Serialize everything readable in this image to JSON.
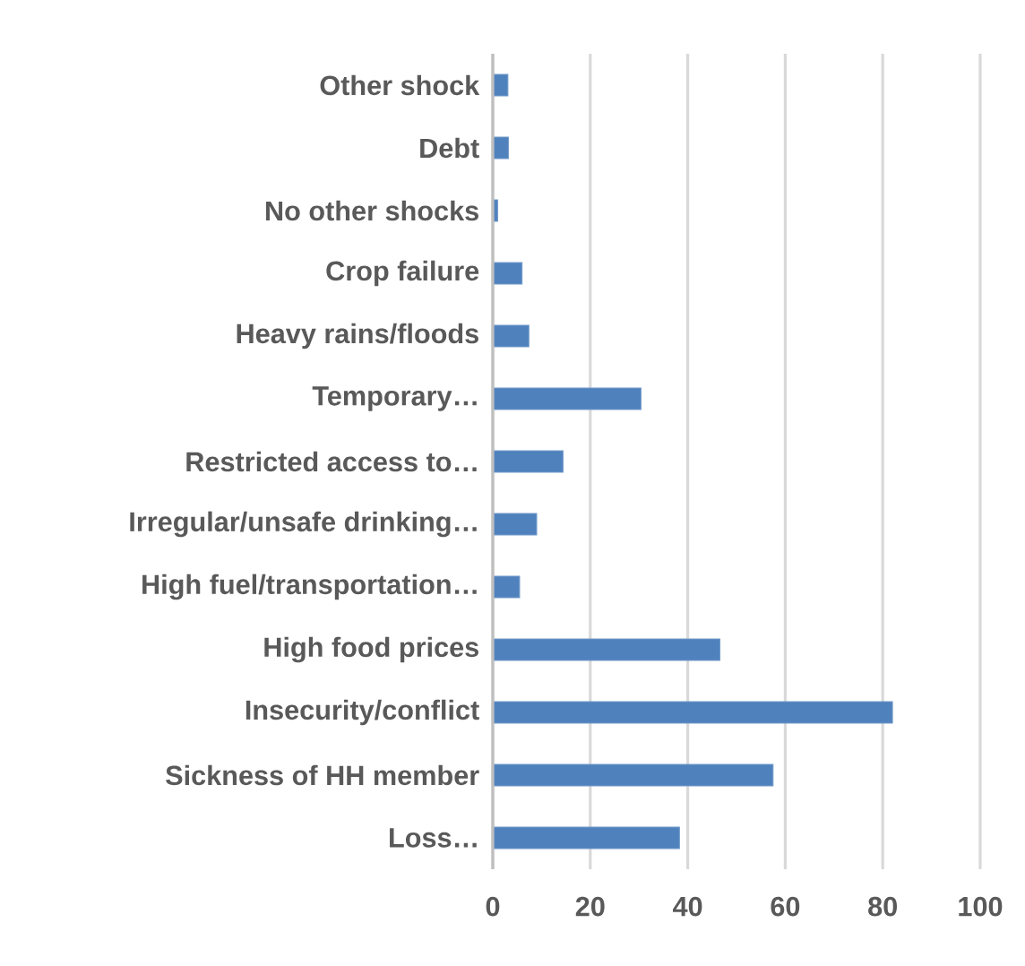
{
  "chart_data": {
    "type": "bar",
    "orientation": "horizontal",
    "categories": [
      "Other shock",
      "Debt",
      "No other shocks",
      "Crop failure",
      "Heavy rains/floods",
      "Temporary…",
      "Restricted access to…",
      "Irregular/unsafe drinking…",
      "High fuel/transportation…",
      "High food prices",
      "Insecurity/conflict",
      "Sickness of HH member",
      "Loss…"
    ],
    "values": [
      3.1,
      3.2,
      1.0,
      6.0,
      7.4,
      30.4,
      14.4,
      9.0,
      5.5,
      46.6,
      82.0,
      57.5,
      38.3
    ],
    "color": "#4f81bd",
    "xlim": [
      0,
      100
    ],
    "xticks": [
      0,
      20,
      40,
      60,
      80,
      100
    ],
    "grid": "x"
  }
}
